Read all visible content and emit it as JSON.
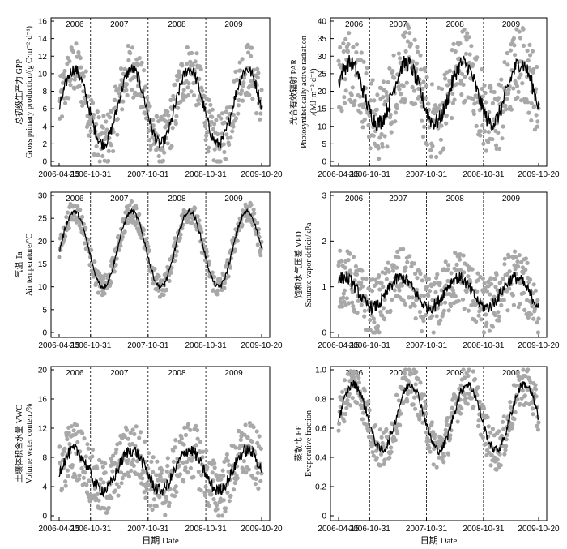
{
  "figure": {
    "x_ticks": [
      "2006-04-15",
      "2006-10-31",
      "2007-10-31",
      "2008-10-31",
      "2009-10-20"
    ],
    "x_label": "日期 Date"
  },
  "chart_data": [
    {
      "type": "scatter",
      "ylabel": [
        "总初级生产力 GPP",
        "Gross primary production/(g C·m⁻²·d⁻¹)"
      ],
      "ylim": [
        0,
        16
      ],
      "yticks": [
        0,
        2,
        4,
        6,
        8,
        10,
        12,
        14,
        16
      ],
      "years": [
        "2006",
        "2007",
        "2008",
        "2009"
      ],
      "year_separators": [
        "2006-10-31",
        "2007-10-31",
        "2008-10-31"
      ],
      "date_range": [
        "2006-04-15",
        "2009-10-20"
      ],
      "series": [
        {
          "kind": "daily-scatter",
          "color": "#a8a8a8",
          "shape": "seasonal"
        },
        {
          "kind": "smoothed-line",
          "color": "#000000"
        }
      ],
      "seasonal_profile": {
        "winter_low": 2,
        "summer_high": 10.5,
        "peak": "mid-summer",
        "scatter_range": 4
      }
    },
    {
      "type": "scatter",
      "ylabel": [
        "光合有效辐射 PAR",
        "Photosynthetically active radiation",
        "/(MJ·m⁻²·d⁻¹)"
      ],
      "ylim": [
        0,
        40
      ],
      "yticks": [
        0,
        5,
        10,
        15,
        20,
        25,
        30,
        35,
        40
      ],
      "years": [
        "2006",
        "2007",
        "2008",
        "2009"
      ],
      "year_separators": [
        "2006-10-31",
        "2007-10-31",
        "2008-10-31"
      ],
      "date_range": [
        "2006-04-15",
        "2009-10-20"
      ],
      "series": [
        {
          "kind": "daily-scatter",
          "color": "#a8a8a8"
        },
        {
          "kind": "smoothed-line",
          "color": "#000000"
        }
      ],
      "seasonal_profile": {
        "winter_low": 11,
        "summer_high": 28,
        "peak": "early-summer",
        "scatter_range": 14
      }
    },
    {
      "type": "scatter",
      "ylabel": [
        "气温 Ta",
        "Air temperature/°C"
      ],
      "ylim": [
        0,
        30
      ],
      "yticks": [
        0,
        5,
        10,
        15,
        20,
        25,
        30
      ],
      "years": [
        "2006",
        "2007",
        "2008",
        "2009"
      ],
      "year_separators": [
        "2006-10-31",
        "2007-10-31",
        "2008-10-31"
      ],
      "date_range": [
        "2006-04-15",
        "2009-10-20"
      ],
      "series": [
        {
          "kind": "daily-scatter",
          "color": "#a8a8a8"
        },
        {
          "kind": "smoothed-line",
          "color": "#000000"
        }
      ],
      "seasonal_profile": {
        "winter_low": 10,
        "summer_high": 26.5,
        "peak": "mid-summer",
        "scatter_range": 3
      }
    },
    {
      "type": "scatter",
      "ylabel": [
        "饱和水气压差 VPD",
        "Saturate vapor deficit/kPa"
      ],
      "ylim": [
        0,
        3
      ],
      "yticks": [
        0,
        1,
        2,
        3
      ],
      "years": [
        "2006",
        "2007",
        "2008",
        "2009"
      ],
      "year_separators": [
        "2006-10-31",
        "2007-10-31",
        "2008-10-31"
      ],
      "date_range": [
        "2006-04-15",
        "2009-10-20"
      ],
      "series": [
        {
          "kind": "daily-scatter",
          "color": "#a8a8a8"
        },
        {
          "kind": "smoothed-line",
          "color": "#000000"
        }
      ],
      "seasonal_profile": {
        "winter_low": 0.55,
        "summer_high": 1.2,
        "peak": "spring",
        "scatter_range": 0.8
      }
    },
    {
      "type": "scatter",
      "ylabel": [
        "土壤体积含水量 VWC",
        "Volume water content/%"
      ],
      "ylim": [
        0,
        20
      ],
      "yticks": [
        0,
        4,
        8,
        12,
        16,
        20
      ],
      "years": [
        "2006",
        "2007",
        "2008",
        "2009"
      ],
      "year_separators": [
        "2006-10-31",
        "2007-10-31",
        "2008-10-31"
      ],
      "date_range": [
        "2006-04-15",
        "2009-10-20"
      ],
      "series": [
        {
          "kind": "daily-scatter",
          "color": "#a8a8a8"
        },
        {
          "kind": "smoothed-line",
          "color": "#000000"
        }
      ],
      "seasonal_profile": {
        "winter_low": 3.5,
        "summer_high": 9,
        "peak": "pulses",
        "scatter_range": 5
      }
    },
    {
      "type": "scatter",
      "ylabel": [
        "蒸散比 EF",
        "Evaporative fraction"
      ],
      "ylim": [
        0,
        1
      ],
      "yticks": [
        0,
        0.2,
        0.4,
        0.6,
        0.8,
        1.0
      ],
      "years": [
        "2006",
        "2007",
        "2008",
        "2009"
      ],
      "year_separators": [
        "2006-10-31",
        "2007-10-31",
        "2008-10-31"
      ],
      "date_range": [
        "2006-04-15",
        "2009-10-20"
      ],
      "series": [
        {
          "kind": "daily-scatter",
          "color": "#a8a8a8"
        },
        {
          "kind": "smoothed-line",
          "color": "#000000"
        }
      ],
      "seasonal_profile": {
        "winter_low": 0.45,
        "summer_high": 0.9,
        "peak": "mid-summer",
        "scatter_range": 0.18
      }
    }
  ]
}
